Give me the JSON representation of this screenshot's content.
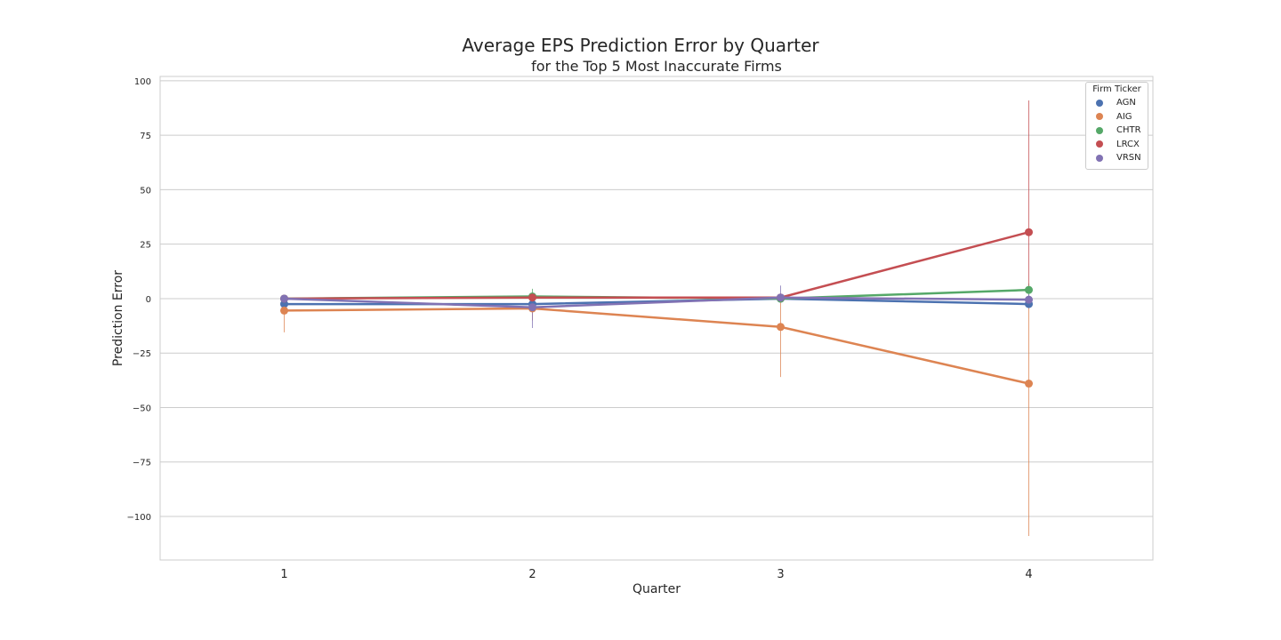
{
  "chart_data": {
    "type": "line",
    "title": "Average EPS Prediction Error by Quarter",
    "subtitle": "for the Top 5 Most Inaccurate Firms",
    "xlabel": "Quarter",
    "ylabel": "Prediction Error",
    "categories": [
      "1",
      "2",
      "3",
      "4"
    ],
    "ylim": [
      -120,
      102
    ],
    "yticks": [
      100,
      75,
      50,
      25,
      0,
      -25,
      -50,
      -75,
      -100
    ],
    "ytick_labels": [
      "100",
      "75",
      "50",
      "25",
      "0",
      "−25",
      "−50",
      "−75",
      "−100"
    ],
    "grid": "horizontal",
    "legend": {
      "title": "Firm Ticker",
      "placement": "top-right"
    },
    "series": [
      {
        "name": "AGN",
        "color": "#4c72b0",
        "values": [
          -2.5,
          -2.5,
          0,
          -2.5
        ],
        "ci_low": [
          -3.5,
          -4.0,
          -1.5,
          -4.0
        ],
        "ci_high": [
          -1.5,
          -1.0,
          1.5,
          -1.0
        ]
      },
      {
        "name": "AIG",
        "color": "#dd8452",
        "values": [
          -5.5,
          -4.5,
          -13,
          -39
        ],
        "ci_low": [
          -15.5,
          -10,
          -36,
          -109
        ],
        "ci_high": [
          -1,
          -1,
          -1,
          -1
        ]
      },
      {
        "name": "CHTR",
        "color": "#55a868",
        "values": [
          0,
          1,
          0,
          4
        ],
        "ci_low": [
          -1,
          -2,
          -1,
          1
        ],
        "ci_high": [
          1,
          4.5,
          1,
          7
        ]
      },
      {
        "name": "LRCX",
        "color": "#c44e52",
        "values": [
          0,
          0.5,
          0.5,
          30.5
        ],
        "ci_low": [
          -1,
          -1,
          -1,
          5
        ],
        "ci_high": [
          1,
          2,
          2,
          91
        ]
      },
      {
        "name": "VRSN",
        "color": "#8172b3",
        "values": [
          0,
          -4,
          0.5,
          -0.5
        ],
        "ci_low": [
          -1,
          -13.5,
          -1,
          -3
        ],
        "ci_high": [
          1,
          -1,
          6,
          2
        ]
      }
    ]
  }
}
